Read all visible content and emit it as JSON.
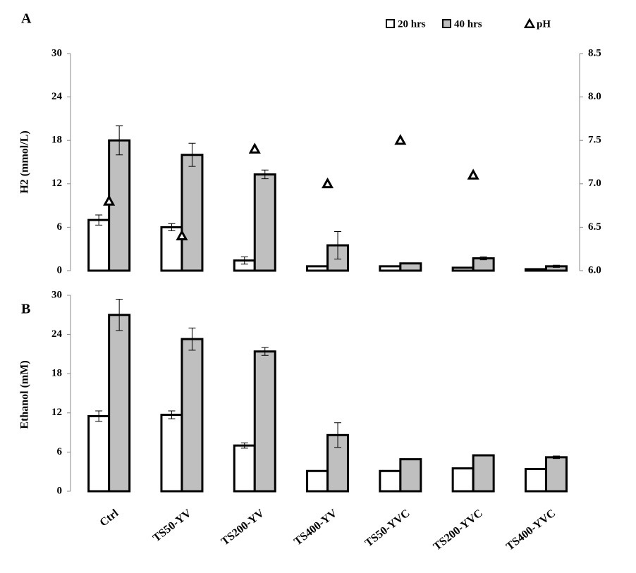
{
  "chart_data": [
    {
      "type": "bar",
      "panel_label": "A",
      "y_label": "H2 (mmol/L)",
      "ylim": [
        0,
        30
      ],
      "yticks": [
        0,
        6,
        12,
        18,
        24,
        30
      ],
      "y2lim": [
        6,
        8.5
      ],
      "y2ticks": [
        {
          "value": 6,
          "label": "6.0"
        },
        {
          "value": 6.5,
          "label": "6.5"
        },
        {
          "value": 7,
          "label": "7.0"
        },
        {
          "value": 7.5,
          "label": "7.5"
        },
        {
          "value": 8,
          "label": "8.0"
        },
        {
          "value": 8.5,
          "label": "8.5"
        }
      ],
      "series": [
        {
          "name": "20 hrs",
          "color": "#ffffff",
          "values": [
            7.0,
            6.0,
            1.4,
            0.6,
            0.6,
            0.4,
            0.2
          ],
          "errors": [
            0.7,
            0.5,
            0.5,
            null,
            null,
            null,
            null
          ]
        },
        {
          "name": "40 hrs",
          "color": "#bfbfbf",
          "values": [
            18.0,
            16.0,
            13.3,
            3.5,
            1.0,
            1.7,
            0.6
          ],
          "errors": [
            2.0,
            1.6,
            0.6,
            1.9,
            null,
            0.2,
            0.15
          ]
        },
        {
          "name": "pH",
          "type": "scatter",
          "axis": "y2",
          "color": "#000000",
          "values": [
            6.8,
            6.4,
            7.4,
            7.0,
            7.5,
            7.1,
            null
          ]
        }
      ]
    },
    {
      "type": "bar",
      "panel_label": "B",
      "y_label": "Ethanol (mM)",
      "categories": [
        "Ctrl",
        "TS50-YV",
        "TS200-YV",
        "TS400-YV",
        "TS50-YVC",
        "TS200-YVC",
        "TS400-YVC"
      ],
      "ylim": [
        0,
        30
      ],
      "yticks": [
        0,
        6,
        12,
        18,
        24,
        30
      ],
      "series": [
        {
          "color": "#ffffff",
          "values": [
            11.5,
            11.7,
            7.0,
            3.1,
            3.1,
            3.5,
            3.4
          ],
          "errors": [
            0.8,
            0.6,
            0.4,
            null,
            null,
            null,
            null
          ]
        },
        {
          "color": "#bfbfbf",
          "values": [
            27.0,
            23.3,
            21.4,
            8.6,
            4.9,
            5.5,
            5.2
          ],
          "errors": [
            2.4,
            1.7,
            0.6,
            1.9,
            null,
            null,
            0.2
          ]
        }
      ]
    }
  ]
}
